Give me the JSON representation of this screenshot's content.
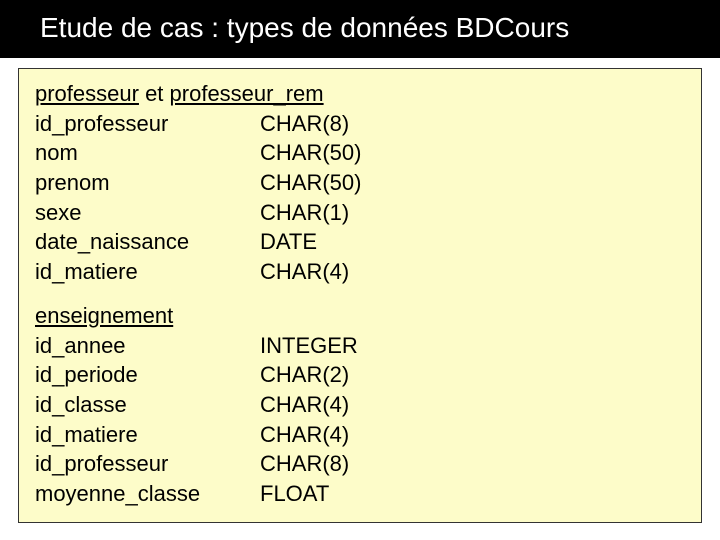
{
  "header": {
    "title": "Etude de cas : types de données BDCours"
  },
  "section1": {
    "heading_a": "professeur",
    "sep": " et ",
    "heading_b": "professeur_rem",
    "rows": [
      {
        "field": "id_professeur",
        "type": "CHAR(8)"
      },
      {
        "field": "nom",
        "type": "CHAR(50)"
      },
      {
        "field": "prenom",
        "type": "CHAR(50)"
      },
      {
        "field": "sexe",
        "type": "CHAR(1)"
      },
      {
        "field": "date_naissance",
        "type": "DATE"
      },
      {
        "field": "id_matiere",
        "type": "CHAR(4)"
      }
    ]
  },
  "section2": {
    "heading": "enseignement",
    "rows": [
      {
        "field": "id_annee",
        "type": "INTEGER"
      },
      {
        "field": "id_periode",
        "type": "CHAR(2)"
      },
      {
        "field": "id_classe",
        "type": "CHAR(4)"
      },
      {
        "field": "id_matiere",
        "type": "CHAR(4)"
      },
      {
        "field": "id_professeur",
        "type": "CHAR(8)"
      },
      {
        "field": "moyenne_classe",
        "type": "FLOAT"
      }
    ]
  },
  "style": {
    "header_bg": "#000000",
    "header_color": "#ffffff",
    "content_bg": "#fdfcc9",
    "content_border": "#333333",
    "text_color": "#000000",
    "font_size_title": 28,
    "font_size_body": 22,
    "col_field_width": 225
  }
}
